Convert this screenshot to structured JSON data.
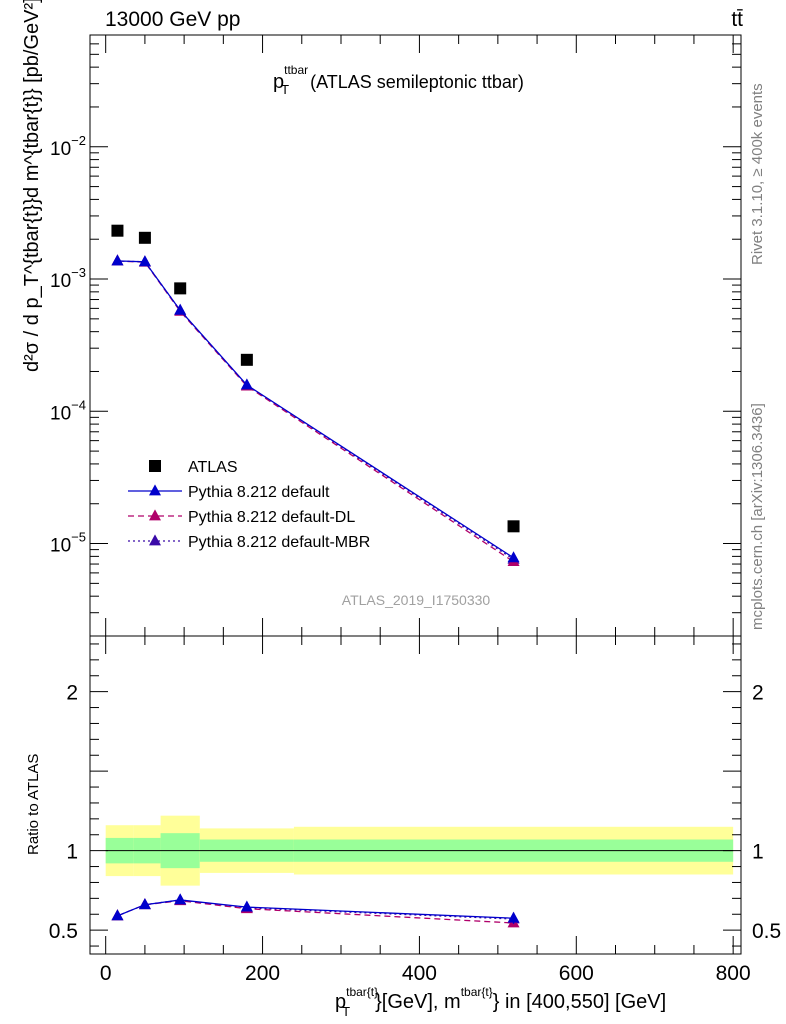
{
  "header": {
    "energy_label": "13000 GeV pp",
    "process_label": "tt̄",
    "title_main": "p",
    "title_sub": "T",
    "title_sup": "ttbar",
    "title_rest": " (ATLAS semileptonic ttbar)",
    "analysis_id": "ATLAS_2019_I1750330",
    "rivet_label": "Rivet 3.1.10, ≥ 400k events",
    "mcplots_label": "mcplots.cern.ch [arXiv:1306.3436]"
  },
  "colors": {
    "atlas": "#000000",
    "default": "#0000cc",
    "dl": "#b0006a",
    "mbr": "#3a0aa8",
    "band_inner": "#99ff99",
    "band_outer": "#ffff99"
  },
  "chart_data": [
    {
      "type": "scatter",
      "panel": "main",
      "yscale": "log",
      "ylim": [
        2e-06,
        0.07
      ],
      "xlim": [
        -20,
        810
      ],
      "ylabel": "d²σ / d p_T^{tbar{t}}d m^{tbar{t}} [pb/GeV²]",
      "y_ticks": [
        {
          "value": 0.01,
          "base": "10",
          "exp": "−2"
        },
        {
          "value": 0.001,
          "base": "10",
          "exp": "−3"
        },
        {
          "value": 0.0001,
          "base": "10",
          "exp": "−4"
        },
        {
          "value": 1e-05,
          "base": "10",
          "exp": "−5"
        }
      ],
      "x": [
        15,
        50,
        95,
        180,
        520
      ],
      "series": [
        {
          "key": "atlas",
          "name": "ATLAS",
          "style": "square",
          "values": [
            0.00232,
            0.00205,
            0.00085,
            0.000245,
            1.35e-05
          ]
        },
        {
          "key": "default",
          "name": "Pythia 8.212 default",
          "style": "solid",
          "values": [
            0.00137,
            0.00135,
            0.00058,
            0.000158,
            7.8e-06
          ]
        },
        {
          "key": "dl",
          "name": "Pythia 8.212 default-DL",
          "style": "dashed",
          "values": [
            0.00137,
            0.00134,
            0.00057,
            0.000155,
            7.3e-06
          ]
        },
        {
          "key": "mbr",
          "name": "Pythia 8.212 default-MBR",
          "style": "dotted",
          "values": [
            0.00137,
            0.00135,
            0.00058,
            0.000157,
            7.6e-06
          ]
        }
      ]
    },
    {
      "type": "line",
      "panel": "ratio",
      "ylabel": "Ratio to ATLAS",
      "xlabel_main": "p",
      "xlabel_sub": "T",
      "xlabel_sup1": "tbar{t}",
      "xlabel_mid": "}[GeV], m",
      "xlabel_sup2": "tbar{t}",
      "xlabel_end": "} in [400,550] [GeV]",
      "ylim": [
        0.35,
        2.35
      ],
      "xlim": [
        -20,
        810
      ],
      "x_ticks": [
        0,
        200,
        400,
        600,
        800
      ],
      "y_ticks": [
        0.5,
        1,
        2
      ],
      "bands": [
        {
          "x0": 0,
          "x1": 35,
          "inner": [
            0.92,
            1.08
          ],
          "outer": [
            0.84,
            1.16
          ]
        },
        {
          "x0": 35,
          "x1": 70,
          "inner": [
            0.92,
            1.08
          ],
          "outer": [
            0.84,
            1.16
          ]
        },
        {
          "x0": 70,
          "x1": 120,
          "inner": [
            0.89,
            1.11
          ],
          "outer": [
            0.78,
            1.22
          ]
        },
        {
          "x0": 120,
          "x1": 240,
          "inner": [
            0.93,
            1.07
          ],
          "outer": [
            0.86,
            1.14
          ]
        },
        {
          "x0": 240,
          "x1": 800,
          "inner": [
            0.93,
            1.07
          ],
          "outer": [
            0.85,
            1.15
          ]
        }
      ],
      "x": [
        15,
        50,
        95,
        180,
        520
      ],
      "series": [
        {
          "key": "default",
          "name": "Pythia 8.212 default",
          "style": "solid",
          "values": [
            0.59,
            0.66,
            0.69,
            0.645,
            0.575
          ]
        },
        {
          "key": "dl",
          "name": "Pythia 8.212 default-DL",
          "style": "dashed",
          "values": [
            0.59,
            0.66,
            0.685,
            0.635,
            0.545
          ]
        },
        {
          "key": "mbr",
          "name": "Pythia 8.212 default-MBR",
          "style": "dotted",
          "values": [
            0.59,
            0.66,
            0.69,
            0.64,
            0.57
          ]
        }
      ]
    }
  ]
}
